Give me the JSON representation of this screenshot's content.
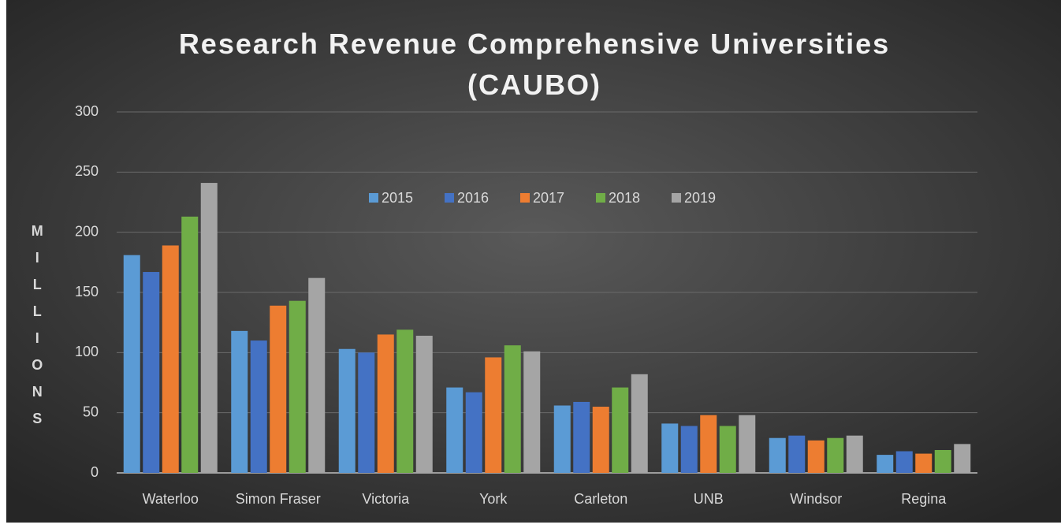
{
  "chart_data": {
    "type": "bar",
    "title": "Research Revenue Comprehensive Universities (CAUBO)",
    "ylabel": "MILLIONS",
    "categories": [
      "Waterloo",
      "Simon Fraser",
      "Victoria",
      "York",
      "Carleton",
      "UNB",
      "Windsor",
      "Regina"
    ],
    "series": [
      {
        "name": "2015",
        "color": "#5b9bd5",
        "values": [
          181,
          118,
          103,
          71,
          56,
          41,
          29,
          15
        ]
      },
      {
        "name": "2016",
        "color": "#4472c4",
        "values": [
          167,
          110,
          100,
          67,
          59,
          39,
          31,
          18
        ]
      },
      {
        "name": "2017",
        "color": "#ed7d31",
        "values": [
          189,
          139,
          115,
          96,
          55,
          48,
          27,
          16
        ]
      },
      {
        "name": "2018",
        "color": "#70ad47",
        "values": [
          213,
          143,
          119,
          106,
          71,
          39,
          29,
          19
        ]
      },
      {
        "name": "2019",
        "color": "#a5a5a5",
        "values": [
          241,
          162,
          114,
          101,
          82,
          48,
          31,
          24
        ]
      }
    ],
    "ylim": [
      0,
      300
    ],
    "yticks": [
      0,
      50,
      100,
      150,
      200,
      250,
      300
    ],
    "grid": true,
    "legend": "top"
  }
}
